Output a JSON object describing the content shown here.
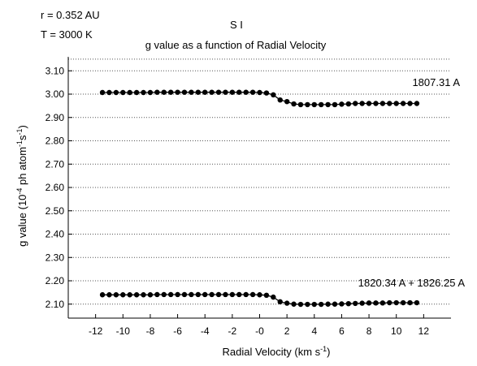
{
  "header": {
    "radius": "r = 0.352 AU",
    "temperature": "T = 3000 K",
    "species": "S I"
  },
  "chart_data": {
    "type": "line",
    "title": "g value as a function of Radial Velocity",
    "xlabel": "Radial Velocity (km s",
    "xlabel_sup": "-1",
    "xlabel_end": ")",
    "ylabel": "g value (10",
    "ylabel_sup1": "-4",
    "ylabel_mid": " ph atom",
    "ylabel_sup2": "-1",
    "ylabel_s": "s",
    "ylabel_sup3": "-1",
    "ylabel_end": ")",
    "xlim": [
      -14,
      14
    ],
    "ylim": [
      2.04,
      3.16
    ],
    "xticks": [
      -12,
      -10,
      -8,
      -6,
      -4,
      -2,
      0,
      2,
      4,
      6,
      8,
      10,
      12
    ],
    "xtick_labels": [
      "-12",
      "-10",
      "-8",
      "-6",
      "-4",
      "-2",
      "-0",
      "2",
      "4",
      "6",
      "8",
      "10",
      "12"
    ],
    "yticks": [
      2.1,
      2.2,
      2.3,
      2.4,
      2.5,
      2.6,
      2.7,
      2.8,
      2.9,
      3.0,
      3.1
    ],
    "ytick_labels": [
      "2.10",
      "2.20",
      "2.30",
      "2.40",
      "2.50",
      "2.60",
      "2.70",
      "2.80",
      "2.90",
      "3.00",
      "3.10"
    ],
    "grid": "horizontal dotted",
    "x": [
      -11.5,
      -11,
      -10.5,
      -10,
      -9.5,
      -9,
      -8.5,
      -8,
      -7.5,
      -7,
      -6.5,
      -6,
      -5.5,
      -5,
      -4.5,
      -4,
      -3.5,
      -3,
      -2.5,
      -2,
      -1.5,
      -1,
      -0.5,
      0,
      0.5,
      1,
      1.5,
      2,
      2.5,
      3,
      3.5,
      4,
      4.5,
      5,
      5.5,
      6,
      6.5,
      7,
      7.5,
      8,
      8.5,
      9,
      9.5,
      10,
      10.5,
      11,
      11.5
    ],
    "series": [
      {
        "name": "1807.31 A",
        "values": [
          3.007,
          3.007,
          3.007,
          3.007,
          3.007,
          3.007,
          3.007,
          3.007,
          3.008,
          3.008,
          3.008,
          3.008,
          3.008,
          3.008,
          3.008,
          3.008,
          3.008,
          3.008,
          3.008,
          3.008,
          3.008,
          3.008,
          3.008,
          3.007,
          3.005,
          2.997,
          2.975,
          2.968,
          2.958,
          2.955,
          2.955,
          2.955,
          2.955,
          2.955,
          2.955,
          2.957,
          2.958,
          2.96,
          2.96,
          2.96,
          2.96,
          2.96,
          2.96,
          2.96,
          2.96,
          2.96,
          2.96
        ]
      },
      {
        "name": "1820.34 A + 1826.25 A",
        "values": [
          2.14,
          2.14,
          2.14,
          2.14,
          2.14,
          2.14,
          2.14,
          2.14,
          2.141,
          2.141,
          2.141,
          2.141,
          2.141,
          2.141,
          2.141,
          2.141,
          2.141,
          2.141,
          2.141,
          2.141,
          2.141,
          2.141,
          2.141,
          2.14,
          2.138,
          2.13,
          2.11,
          2.104,
          2.1,
          2.099,
          2.099,
          2.099,
          2.099,
          2.1,
          2.1,
          2.101,
          2.102,
          2.103,
          2.104,
          2.105,
          2.105,
          2.105,
          2.106,
          2.106,
          2.106,
          2.106,
          2.106
        ]
      }
    ]
  }
}
